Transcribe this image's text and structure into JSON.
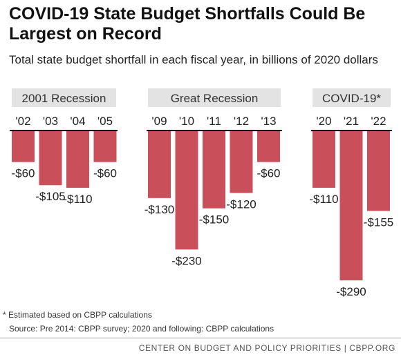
{
  "header": {
    "title": "COVID-19 State Budget Shortfalls Could Be Largest on Record",
    "subtitle": "Total state budget shortfall in each fiscal year, in billions of 2020 dollars"
  },
  "chart_data": {
    "type": "bar",
    "title": "COVID-19 State Budget Shortfalls Could Be Largest on Record",
    "subtitle": "Total state budget shortfall in each fiscal year, in billions of 2020 dollars",
    "xlabel": "",
    "ylabel": "",
    "ylim": [
      -290,
      0
    ],
    "grid": false,
    "groups": [
      {
        "label": "2001 Recession",
        "categories": [
          "'02",
          "'03",
          "'04",
          "'05"
        ],
        "values": [
          -60,
          -105,
          -110,
          -60
        ],
        "value_labels": [
          "-$60",
          "-$105",
          "-$110",
          "-$60"
        ]
      },
      {
        "label": "Great Recession",
        "categories": [
          "'09",
          "'10",
          "'11",
          "'12",
          "'13"
        ],
        "values": [
          -130,
          -230,
          -150,
          -120,
          -60
        ],
        "value_labels": [
          "-$130",
          "-$230",
          "-$150",
          "-$120",
          "-$60"
        ]
      },
      {
        "label": "COVID-19*",
        "categories": [
          "'20",
          "'21",
          "'22"
        ],
        "values": [
          -110,
          -290,
          -155
        ],
        "value_labels": [
          "-$110",
          "-$290",
          "-$155"
        ]
      }
    ],
    "colors": {
      "bar": "#c9505a",
      "group_label_bg": "#e3e3e3",
      "axis": "#111111"
    }
  },
  "footer": {
    "note": "* Estimated based on CBPP calculations",
    "source": "Source: Pre 2014: CBPP survey;  2020 and following: CBPP calculations",
    "brand": "CENTER ON BUDGET AND POLICY PRIORITIES | CBPP.ORG"
  }
}
